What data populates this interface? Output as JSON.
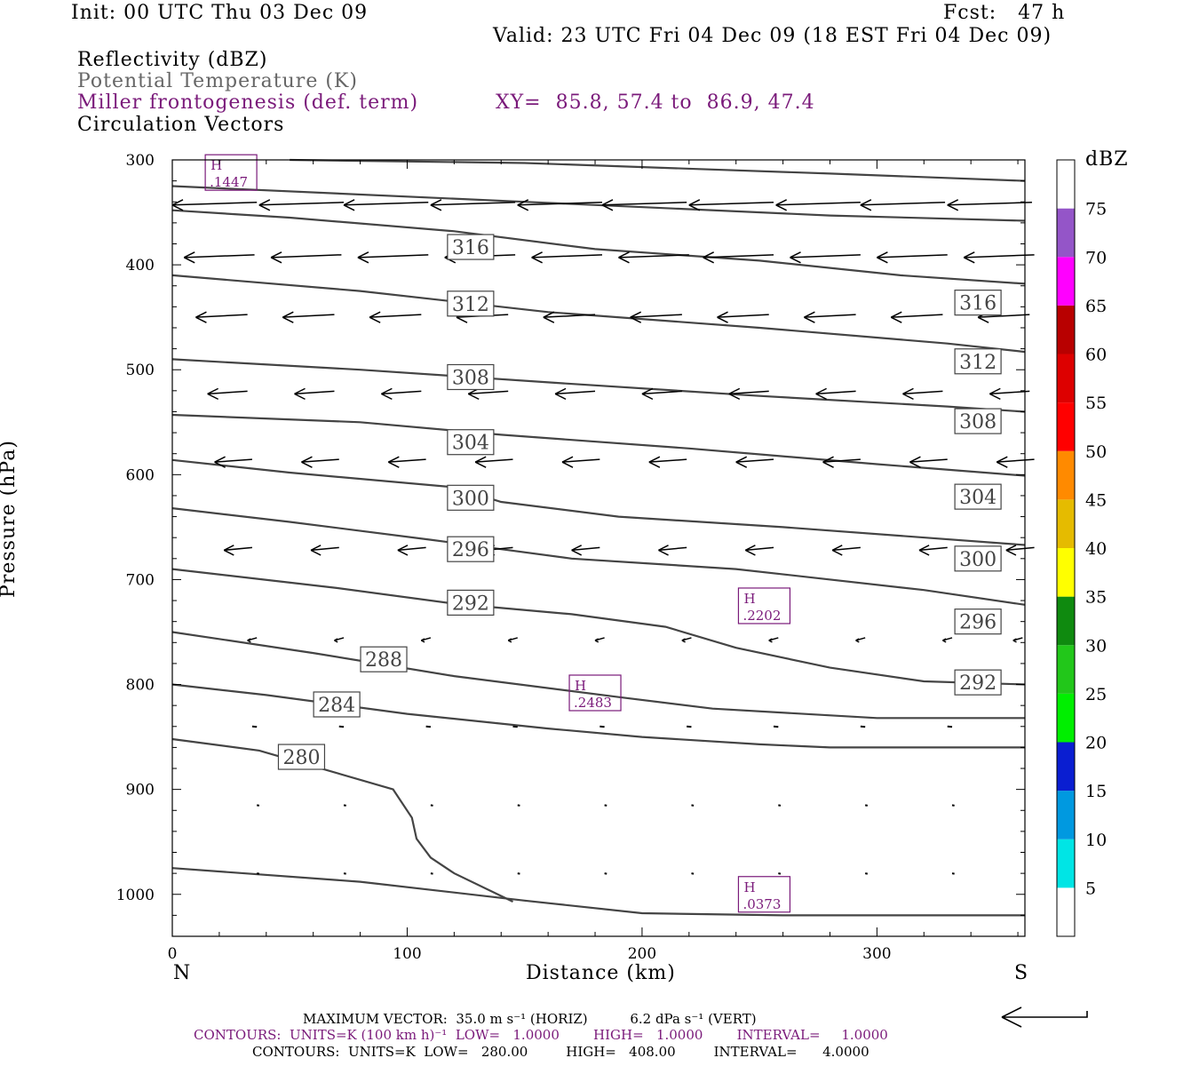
{
  "header": {
    "init": "Init: 00 UTC Thu 03 Dec 09",
    "fcst": "Fcst:   47 h",
    "valid": "Valid: 23 UTC Fri 04 Dec 09 (18 EST Fri 04 Dec 09)",
    "fields": [
      "Reflectivity (dBZ)",
      "Potential Temperature (K)",
      "Miller frontogenesis (def. term)",
      "Circulation Vectors"
    ],
    "xy": "XY=  85.8, 57.4 to  86.9, 47.4"
  },
  "footer": {
    "max_vector": "MAXIMUM VECTOR:  35.0 m s⁻¹ (HORIZ)          6.2 dPa s⁻¹ (VERT)",
    "contours_fronto": "CONTOURS:  UNITS=K (100 km h)⁻¹  LOW=   1.0000        HIGH=   1.0000        INTERVAL=     1.0000",
    "contours_theta": "CONTOURS:  UNITS=K  LOW=   280.00         HIGH=   408.00         INTERVAL=      4.0000"
  },
  "colors": {
    "theta": "#444444",
    "fronto": "#7a1a7a",
    "vectors": "#000000"
  },
  "chart_data": {
    "type": "cross-section",
    "xlabel": "Distance (km)",
    "ylabel": "Pressure (hPa)",
    "xlim": [
      0,
      363
    ],
    "ylim": [
      1040,
      300
    ],
    "x_ticks": [
      0,
      100,
      200,
      300
    ],
    "y_ticks": [
      300,
      400,
      500,
      600,
      700,
      800,
      900,
      1000
    ],
    "x_end_labels": {
      "left": "N",
      "right": "S"
    },
    "theta_contours": [
      {
        "level": 280,
        "points": [
          [
            0,
            852
          ],
          [
            37,
            863
          ],
          [
            94,
            900
          ],
          [
            102,
            927
          ],
          [
            104,
            947
          ],
          [
            110,
            965
          ],
          [
            120,
            980
          ],
          [
            145,
            1007
          ]
        ]
      },
      {
        "level": 280,
        "points": [
          [
            0,
            975
          ],
          [
            80,
            988
          ],
          [
            150,
            1006
          ],
          [
            200,
            1018
          ],
          [
            260,
            1020
          ],
          [
            363,
            1020
          ]
        ]
      },
      {
        "level": 284,
        "points": [
          [
            0,
            800
          ],
          [
            40,
            810
          ],
          [
            100,
            828
          ],
          [
            160,
            842
          ],
          [
            200,
            850
          ],
          [
            250,
            857
          ],
          [
            280,
            860
          ],
          [
            363,
            860
          ]
        ]
      },
      {
        "level": 288,
        "points": [
          [
            0,
            750
          ],
          [
            60,
            770
          ],
          [
            120,
            792
          ],
          [
            190,
            812
          ],
          [
            230,
            823
          ],
          [
            300,
            832
          ],
          [
            363,
            832
          ]
        ]
      },
      {
        "level": 292,
        "points": [
          [
            0,
            690
          ],
          [
            70,
            708
          ],
          [
            120,
            723
          ],
          [
            170,
            733
          ],
          [
            210,
            745
          ],
          [
            240,
            765
          ],
          [
            280,
            784
          ],
          [
            320,
            797
          ],
          [
            363,
            800
          ]
        ]
      },
      {
        "level": 296,
        "points": [
          [
            0,
            632
          ],
          [
            50,
            645
          ],
          [
            110,
            662
          ],
          [
            170,
            680
          ],
          [
            240,
            690
          ],
          [
            320,
            710
          ],
          [
            363,
            724
          ]
        ]
      },
      {
        "level": 300,
        "points": [
          [
            0,
            586
          ],
          [
            50,
            598
          ],
          [
            120,
            612
          ],
          [
            140,
            626
          ],
          [
            190,
            640
          ],
          [
            260,
            650
          ],
          [
            363,
            667
          ]
        ]
      },
      {
        "level": 304,
        "points": [
          [
            0,
            543
          ],
          [
            80,
            550
          ],
          [
            140,
            562
          ],
          [
            220,
            575
          ],
          [
            300,
            590
          ],
          [
            363,
            601
          ]
        ]
      },
      {
        "level": 308,
        "points": [
          [
            0,
            490
          ],
          [
            80,
            500
          ],
          [
            160,
            512
          ],
          [
            250,
            525
          ],
          [
            330,
            535
          ],
          [
            363,
            540
          ]
        ]
      },
      {
        "level": 312,
        "points": [
          [
            0,
            410
          ],
          [
            80,
            425
          ],
          [
            160,
            445
          ],
          [
            250,
            460
          ],
          [
            330,
            475
          ],
          [
            363,
            483
          ]
        ]
      },
      {
        "level": 316,
        "points": [
          [
            0,
            348
          ],
          [
            50,
            355
          ],
          [
            120,
            368
          ],
          [
            180,
            385
          ],
          [
            250,
            396
          ],
          [
            310,
            410
          ],
          [
            363,
            418
          ]
        ]
      },
      {
        "level": 320,
        "points": [
          [
            0,
            325
          ],
          [
            150,
            340
          ],
          [
            280,
            353
          ],
          [
            363,
            358
          ]
        ]
      },
      {
        "level": 324,
        "points": [
          [
            50,
            300
          ],
          [
            150,
            303
          ],
          [
            280,
            313
          ],
          [
            363,
            320
          ]
        ]
      }
    ],
    "theta_labels": [
      {
        "text": "316",
        "x": 127,
        "p": 383
      },
      {
        "text": "312",
        "x": 127,
        "p": 437
      },
      {
        "text": "308",
        "x": 127,
        "p": 507
      },
      {
        "text": "304",
        "x": 127,
        "p": 569
      },
      {
        "text": "300",
        "x": 127,
        "p": 622
      },
      {
        "text": "296",
        "x": 127,
        "p": 671
      },
      {
        "text": "292",
        "x": 127,
        "p": 722
      },
      {
        "text": "288",
        "x": 90,
        "p": 776
      },
      {
        "text": "284",
        "x": 70,
        "p": 819
      },
      {
        "text": "280",
        "x": 55,
        "p": 869
      },
      {
        "text": "316",
        "x": 343,
        "p": 436
      },
      {
        "text": "312",
        "x": 343,
        "p": 492
      },
      {
        "text": "308",
        "x": 343,
        "p": 549
      },
      {
        "text": "304",
        "x": 343,
        "p": 621
      },
      {
        "text": "300",
        "x": 343,
        "p": 680
      },
      {
        "text": "296",
        "x": 343,
        "p": 740
      },
      {
        "text": "292",
        "x": 343,
        "p": 798
      }
    ],
    "fronto_maxima": [
      {
        "label": "H",
        "value": ".1447",
        "x": 25,
        "p": 312
      },
      {
        "label": "H",
        "value": ".2202",
        "x": 252,
        "p": 725
      },
      {
        "label": "H",
        "value": ".2483",
        "x": 180,
        "p": 808
      },
      {
        "label": "H",
        "value": ".0373",
        "x": 252,
        "p": 1000
      }
    ],
    "vectors": [
      {
        "p": 343,
        "y0": 341,
        "len": 36,
        "x": [
          0,
          37,
          73,
          110,
          147,
          183,
          220,
          257,
          293,
          330
        ]
      },
      {
        "p": 393,
        "y0": 396,
        "len": 30,
        "x": [
          5,
          42,
          79,
          116,
          153,
          190,
          226,
          263,
          300,
          337
        ]
      },
      {
        "p": 450,
        "y0": 456,
        "len": 22,
        "x": [
          10,
          47,
          84,
          121,
          158,
          195,
          232,
          269,
          306,
          343
        ]
      },
      {
        "p": 523,
        "y0": 518,
        "len": 17,
        "x": [
          15,
          52,
          89,
          126,
          163,
          200,
          237,
          274,
          311,
          348
        ]
      },
      {
        "p": 588,
        "y0": 585,
        "len": 16,
        "x": [
          18,
          55,
          92,
          129,
          166,
          203,
          240,
          277,
          314,
          351
        ]
      },
      {
        "p": 672,
        "y0": 668,
        "len": 12,
        "x": [
          22,
          59,
          96,
          133,
          170,
          207,
          244,
          281,
          318,
          355
        ]
      },
      {
        "p": 758,
        "y0": 762,
        "len": 4,
        "x": [
          32,
          69,
          106,
          143,
          180,
          217,
          254,
          291,
          328,
          358
        ]
      },
      {
        "p": 840,
        "y0": 847,
        "len": 2,
        "x": [
          34,
          71,
          108,
          145,
          182,
          219,
          256,
          293,
          330
        ]
      },
      {
        "p": 915,
        "y0": 930,
        "len": 1,
        "x": [
          36,
          73,
          110,
          147,
          184,
          221,
          258,
          295,
          332
        ]
      },
      {
        "p": 980,
        "y0": 996,
        "len": 1,
        "x": [
          36,
          73,
          110,
          147,
          184,
          221,
          258,
          295,
          332
        ]
      }
    ],
    "colorbar": {
      "title": "dBZ",
      "labels": [
        5,
        10,
        15,
        20,
        25,
        30,
        35,
        40,
        45,
        50,
        55,
        60,
        65,
        70,
        75
      ],
      "colors": [
        "#ffffff",
        "#00e5e5",
        "#0099e0",
        "#0a1ed1",
        "#00ef00",
        "#22c71a",
        "#0f8a0f",
        "#ffff00",
        "#e5bb00",
        "#ff8a00",
        "#ff0000",
        "#dd0000",
        "#b80000",
        "#ff00ff",
        "#9455c8",
        "#ffffff"
      ]
    }
  }
}
